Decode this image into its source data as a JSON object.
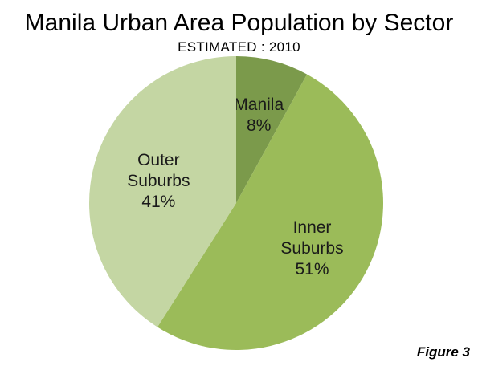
{
  "header": {
    "title": "Manila Urban Area Population by Sector",
    "subtitle": "ESTIMATED : 2010"
  },
  "figure_label": "Figure 3",
  "chart_data": {
    "type": "pie",
    "title": "Manila Urban Area Population by Sector",
    "subtitle": "ESTIMATED : 2010",
    "legend": "none",
    "labels_inside": true,
    "slices": [
      {
        "name": "Manila",
        "label_lines": [
          "Manila",
          "8%"
        ],
        "value": 8,
        "color": "#7b9a4b"
      },
      {
        "name": "Inner Suburbs",
        "label_lines": [
          "Inner",
          "Suburbs",
          "51%"
        ],
        "value": 51,
        "color": "#9bbb59"
      },
      {
        "name": "Outer Suburbs",
        "label_lines": [
          "Outer",
          "Suburbs",
          "41%"
        ],
        "value": 41,
        "color": "#c4d6a3"
      }
    ]
  }
}
